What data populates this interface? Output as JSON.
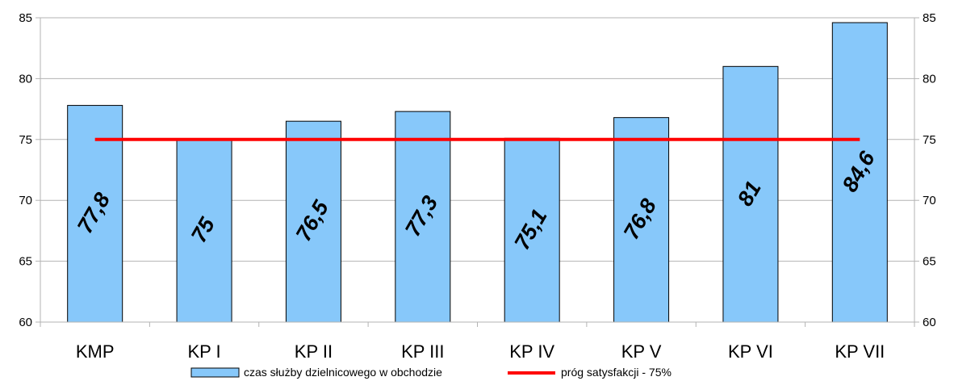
{
  "chart_data": {
    "type": "bar",
    "categories": [
      "KMP",
      "KP I",
      "KP II",
      "KP III",
      "KP IV",
      "KP V",
      "KP VI",
      "KP VII"
    ],
    "series": [
      {
        "name": "czas służby dzielnicowego w obchodzie",
        "type": "bar",
        "color": "#87C8FA",
        "values": [
          77.8,
          75,
          76.5,
          77.3,
          75.1,
          76.8,
          81,
          84.6
        ],
        "data_labels": [
          "77,8",
          "75",
          "76,5",
          "77,3",
          "75,1",
          "76,8",
          "81",
          "84,6"
        ]
      },
      {
        "name": "próg satysfakcji - 75%",
        "type": "line",
        "color": "#FF0000",
        "values": [
          75,
          75,
          75,
          75,
          75,
          75,
          75,
          75
        ]
      }
    ],
    "ylim": [
      60,
      85
    ],
    "yticks": [
      "60",
      "65",
      "70",
      "75",
      "80",
      "85"
    ],
    "secondary_y_axis": true,
    "grid": "horizontal",
    "legend_position": "bottom"
  }
}
